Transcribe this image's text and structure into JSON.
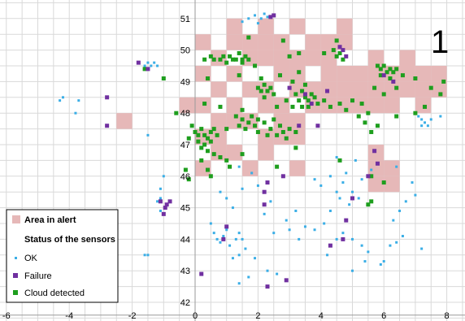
{
  "chart_data": {
    "type": "scatter",
    "panel_label": "1",
    "xlim": [
      -6,
      8.5
    ],
    "ylim": [
      41.8,
      51.4
    ],
    "x_ticks": [
      -6,
      -4,
      -2,
      0,
      2,
      4,
      6,
      8
    ],
    "y_ticks": [
      42,
      43,
      44,
      45,
      46,
      47,
      48,
      49,
      50,
      51
    ],
    "grid": true,
    "legend_position": "bottom-left",
    "colors": {
      "alert": "#e6b8b8",
      "ok": "#3aaee6",
      "failure": "#7030a0",
      "cloud": "#1e9e1e",
      "grid": "#d9d9d9"
    },
    "legend": {
      "alert_label": "Area in alert",
      "status_title": "Status of the sensors",
      "ok_label": "OK",
      "failure_label": "Failure",
      "cloud_label": "Cloud detected"
    },
    "alert_cells": [
      [
        1,
        50.5
      ],
      [
        2,
        50.5
      ],
      [
        3,
        50.5
      ],
      [
        4.5,
        50.5
      ],
      [
        0,
        50
      ],
      [
        1,
        50
      ],
      [
        1.5,
        50
      ],
      [
        2,
        50
      ],
      [
        2.5,
        50
      ],
      [
        3.5,
        50
      ],
      [
        4,
        50
      ],
      [
        4.5,
        50
      ],
      [
        0.5,
        49.5
      ],
      [
        1.5,
        49.5
      ],
      [
        2,
        49.5
      ],
      [
        2.5,
        49.5
      ],
      [
        3,
        49.5
      ],
      [
        3.5,
        49.5
      ],
      [
        4,
        49.5
      ],
      [
        5.5,
        49.5
      ],
      [
        6.5,
        49.5
      ],
      [
        0,
        49
      ],
      [
        1,
        49
      ],
      [
        2.5,
        49
      ],
      [
        3,
        49
      ],
      [
        4,
        49
      ],
      [
        4.5,
        49
      ],
      [
        5,
        49
      ],
      [
        5.5,
        49
      ],
      [
        6,
        49
      ],
      [
        6.5,
        49
      ],
      [
        7,
        49
      ],
      [
        7.5,
        49
      ],
      [
        0.5,
        48.5
      ],
      [
        1.5,
        48.5
      ],
      [
        2,
        48.5
      ],
      [
        3,
        48.5
      ],
      [
        3.5,
        48.5
      ],
      [
        4,
        48.5
      ],
      [
        4.5,
        48.5
      ],
      [
        5,
        48.5
      ],
      [
        5.5,
        48.5
      ],
      [
        6,
        48.5
      ],
      [
        6.5,
        48.5
      ],
      [
        7,
        48.5
      ],
      [
        7.5,
        48.5
      ],
      [
        -0.5,
        48
      ],
      [
        0,
        48
      ],
      [
        1,
        48
      ],
      [
        2,
        48
      ],
      [
        2.5,
        48
      ],
      [
        3.5,
        48
      ],
      [
        4,
        48
      ],
      [
        4.5,
        48
      ],
      [
        5,
        48
      ],
      [
        5.5,
        48
      ],
      [
        6,
        48
      ],
      [
        7,
        48
      ],
      [
        -2.5,
        47.5
      ],
      [
        0.5,
        47.5
      ],
      [
        1,
        47.5
      ],
      [
        1.5,
        47.5
      ],
      [
        2.5,
        47.5
      ],
      [
        3,
        47.5
      ],
      [
        0,
        47
      ],
      [
        0.5,
        47
      ],
      [
        2,
        47
      ],
      [
        2.5,
        47
      ],
      [
        3,
        47
      ],
      [
        0.5,
        46.5
      ],
      [
        1,
        46.5
      ],
      [
        2,
        46.5
      ],
      [
        5.5,
        46.5
      ],
      [
        0,
        46
      ],
      [
        1.5,
        46
      ],
      [
        3,
        46
      ],
      [
        5.5,
        46
      ],
      [
        6,
        46
      ],
      [
        5.5,
        45.5
      ],
      [
        6,
        45.5
      ]
    ],
    "ok": [
      [
        1.7,
        51.0
      ],
      [
        1.9,
        51.1
      ],
      [
        2.1,
        51.0
      ],
      [
        2.2,
        51.15
      ],
      [
        2.3,
        51.05
      ],
      [
        1.5,
        50.9
      ],
      [
        2.0,
        50.85
      ],
      [
        -1.6,
        49.5
      ],
      [
        -1.5,
        49.6
      ],
      [
        -1.4,
        49.5
      ],
      [
        -1.3,
        49.6
      ],
      [
        -1.2,
        49.5
      ],
      [
        -4.3,
        48.4
      ],
      [
        -4.2,
        48.5
      ],
      [
        -3.8,
        48.0
      ],
      [
        -3.7,
        48.4
      ],
      [
        7.1,
        47.9
      ],
      [
        7.2,
        47.8
      ],
      [
        7.3,
        47.7
      ],
      [
        7.4,
        47.6
      ],
      [
        7.2,
        47.6
      ],
      [
        7.8,
        47.9
      ],
      [
        7.5,
        47.8
      ],
      [
        -1.5,
        47.3
      ],
      [
        -1.0,
        46.0
      ],
      [
        -1.1,
        45.6
      ],
      [
        -1.1,
        45.3
      ],
      [
        -1.2,
        45.2
      ],
      [
        -1.1,
        44.9
      ],
      [
        -1.5,
        43.5
      ],
      [
        -1.6,
        43.5
      ],
      [
        0.5,
        44.5
      ],
      [
        0.6,
        44.2
      ],
      [
        0.7,
        44.0
      ],
      [
        0.8,
        43.9
      ],
      [
        0.9,
        44.1
      ],
      [
        1.0,
        44.3
      ],
      [
        1.1,
        43.8
      ],
      [
        1.3,
        44.0
      ],
      [
        1.4,
        44.2
      ],
      [
        1.5,
        44.0
      ],
      [
        1.6,
        43.7
      ],
      [
        1.4,
        43.5
      ],
      [
        1.2,
        43.4
      ],
      [
        1.4,
        42.6
      ],
      [
        1.7,
        42.8
      ],
      [
        1.9,
        43.4
      ],
      [
        2.3,
        43.0
      ],
      [
        2.6,
        42.9
      ],
      [
        1.0,
        45.3
      ],
      [
        1.2,
        45.0
      ],
      [
        0.8,
        45.5
      ],
      [
        1.5,
        45.6
      ],
      [
        1.8,
        46.1
      ],
      [
        1.4,
        46.3
      ],
      [
        2.0,
        45.7
      ],
      [
        2.2,
        44.8
      ],
      [
        2.5,
        44.2
      ],
      [
        3.0,
        44.3
      ],
      [
        3.5,
        44.4
      ],
      [
        3.3,
        44.0
      ],
      [
        2.9,
        44.6
      ],
      [
        2.4,
        45.2
      ],
      [
        3.2,
        44.9
      ],
      [
        3.8,
        44.3
      ],
      [
        4.1,
        44.5
      ],
      [
        4.3,
        44.9
      ],
      [
        4.0,
        45.7
      ],
      [
        4.3,
        46.0
      ],
      [
        4.5,
        45.5
      ],
      [
        4.7,
        45.8
      ],
      [
        4.6,
        45.3
      ],
      [
        4.9,
        45.1
      ],
      [
        5.0,
        45.5
      ],
      [
        5.3,
        45.9
      ],
      [
        5.2,
        45.3
      ],
      [
        4.8,
        44.6
      ],
      [
        4.7,
        44.2
      ],
      [
        4.5,
        44.0
      ],
      [
        5.0,
        44.0
      ],
      [
        5.3,
        43.8
      ],
      [
        5.5,
        43.6
      ],
      [
        5.4,
        43.3
      ],
      [
        5.9,
        43.2
      ],
      [
        6.0,
        43.3
      ],
      [
        6.2,
        43.8
      ],
      [
        6.4,
        43.9
      ],
      [
        6.6,
        44.1
      ],
      [
        6.3,
        44.6
      ],
      [
        6.5,
        44.9
      ],
      [
        6.7,
        45.2
      ],
      [
        4.5,
        46.6
      ],
      [
        4.8,
        46.1
      ],
      [
        5.1,
        46.5
      ],
      [
        5.6,
        46.2
      ],
      [
        6.4,
        46.3
      ],
      [
        6.9,
        45.8
      ],
      [
        7.2,
        43.7
      ],
      [
        7.0,
        45.4
      ],
      [
        3.8,
        45.9
      ],
      [
        4.2,
        43.5
      ],
      [
        5.0,
        43.0
      ]
    ],
    "failure": [
      [
        2.4,
        51.05
      ],
      [
        2.5,
        51.1
      ],
      [
        -1.8,
        49.6
      ],
      [
        -1.5,
        49.4
      ],
      [
        -2.8,
        48.5
      ],
      [
        -2.8,
        47.6
      ],
      [
        -1.1,
        45.2
      ],
      [
        -0.9,
        45.1
      ],
      [
        -0.8,
        45.2
      ],
      [
        -0.95,
        45.0
      ],
      [
        -1.0,
        44.8
      ],
      [
        1.0,
        44.4
      ],
      [
        0.9,
        44.0
      ],
      [
        0.2,
        42.9
      ],
      [
        2.3,
        42.5
      ],
      [
        2.9,
        42.7
      ],
      [
        2.2,
        45.1
      ],
      [
        2.2,
        45.5
      ],
      [
        2.3,
        45.8
      ],
      [
        4.3,
        43.8
      ],
      [
        4.7,
        44.0
      ],
      [
        4.8,
        44.6
      ],
      [
        5.0,
        45.3
      ],
      [
        5.5,
        46.0
      ],
      [
        5.7,
        46.8
      ],
      [
        5.8,
        46.4
      ],
      [
        6.0,
        49.2
      ],
      [
        6.3,
        49.0
      ],
      [
        4.7,
        50.0
      ],
      [
        4.8,
        49.8
      ],
      [
        4.6,
        50.1
      ],
      [
        3.0,
        48.8
      ],
      [
        3.5,
        48.6
      ],
      [
        3.7,
        48.3
      ],
      [
        3.3,
        47.6
      ],
      [
        3.9,
        47.6
      ],
      [
        4.2,
        48.7
      ],
      [
        2.8,
        46.0
      ]
    ],
    "cloud": [
      [
        1.7,
        50.4
      ],
      [
        2.8,
        50.3
      ],
      [
        4.5,
        50.3
      ],
      [
        0.3,
        49.7
      ],
      [
        0.5,
        49.8
      ],
      [
        0.6,
        49.7
      ],
      [
        0.8,
        49.7
      ],
      [
        0.9,
        49.8
      ],
      [
        1.1,
        49.8
      ],
      [
        1.2,
        49.7
      ],
      [
        1.3,
        49.7
      ],
      [
        1.4,
        49.9
      ],
      [
        1.5,
        49.7
      ],
      [
        1.6,
        49.8
      ],
      [
        1.7,
        49.7
      ],
      [
        1.5,
        49.6
      ],
      [
        1.0,
        49.6
      ],
      [
        3.0,
        49.8
      ],
      [
        3.3,
        49.9
      ],
      [
        4.1,
        49.9
      ],
      [
        4.4,
        50.0
      ],
      [
        4.5,
        49.8
      ],
      [
        4.6,
        49.9
      ],
      [
        4.7,
        49.7
      ],
      [
        -1.6,
        49.4
      ],
      [
        -1.0,
        49.1
      ],
      [
        0.4,
        49.1
      ],
      [
        1.4,
        49.2
      ],
      [
        1.9,
        49.5
      ],
      [
        2.1,
        49.1
      ],
      [
        2.7,
        49.2
      ],
      [
        3.1,
        49.0
      ],
      [
        3.3,
        49.3
      ],
      [
        2.0,
        48.8
      ],
      [
        2.1,
        48.7
      ],
      [
        2.2,
        48.9
      ],
      [
        2.3,
        48.7
      ],
      [
        2.4,
        48.8
      ],
      [
        2.2,
        48.5
      ],
      [
        2.5,
        48.6
      ],
      [
        3.2,
        48.6
      ],
      [
        3.3,
        48.4
      ],
      [
        3.4,
        48.7
      ],
      [
        3.5,
        48.5
      ],
      [
        3.6,
        48.4
      ],
      [
        3.7,
        48.6
      ],
      [
        3.8,
        48.5
      ],
      [
        3.9,
        48.3
      ],
      [
        3.4,
        48.2
      ],
      [
        3.6,
        48.2
      ],
      [
        3.5,
        48.9
      ],
      [
        3.1,
        48.2
      ],
      [
        4.1,
        48.4
      ],
      [
        4.3,
        48.2
      ],
      [
        4.6,
        48.3
      ],
      [
        4.8,
        48.1
      ],
      [
        5.0,
        48.4
      ],
      [
        5.3,
        48.3
      ],
      [
        5.5,
        48.0
      ],
      [
        5.7,
        48.8
      ],
      [
        6.0,
        48.6
      ],
      [
        6.4,
        48.8
      ],
      [
        -0.6,
        48.0
      ],
      [
        0.3,
        48.3
      ],
      [
        0.8,
        48.2
      ],
      [
        1.5,
        48.1
      ],
      [
        2.6,
        48.2
      ],
      [
        2.9,
        48.4
      ],
      [
        -0.1,
        47.6
      ],
      [
        0.0,
        47.4
      ],
      [
        0.1,
        47.3
      ],
      [
        0.2,
        47.5
      ],
      [
        0.3,
        47.3
      ],
      [
        0.4,
        47.2
      ],
      [
        0.5,
        47.4
      ],
      [
        0.6,
        47.5
      ],
      [
        0.1,
        47.1
      ],
      [
        0.3,
        47.0
      ],
      [
        0.5,
        47.1
      ],
      [
        0.7,
        47.3
      ],
      [
        0.2,
        46.9
      ],
      [
        0.4,
        46.8
      ],
      [
        -0.2,
        47.2
      ],
      [
        0.6,
        46.7
      ],
      [
        1.0,
        47.5
      ],
      [
        1.3,
        47.9
      ],
      [
        1.4,
        47.6
      ],
      [
        1.5,
        47.8
      ],
      [
        1.6,
        47.5
      ],
      [
        1.7,
        47.7
      ],
      [
        1.8,
        47.9
      ],
      [
        1.9,
        47.6
      ],
      [
        2.0,
        47.8
      ],
      [
        2.2,
        47.7
      ],
      [
        2.4,
        47.5
      ],
      [
        2.5,
        47.8
      ],
      [
        2.7,
        47.6
      ],
      [
        2.8,
        47.4
      ],
      [
        2.9,
        47.2
      ],
      [
        3.0,
        47.5
      ],
      [
        3.2,
        47.4
      ],
      [
        2.6,
        47.3
      ],
      [
        2.3,
        47.3
      ],
      [
        2.0,
        47.4
      ],
      [
        5.8,
        49.5
      ],
      [
        5.9,
        49.4
      ],
      [
        6.0,
        49.5
      ],
      [
        6.1,
        49.3
      ],
      [
        6.2,
        49.4
      ],
      [
        6.3,
        49.3
      ],
      [
        6.4,
        49.4
      ],
      [
        5.9,
        49.2
      ],
      [
        6.2,
        49.1
      ],
      [
        6.6,
        49.2
      ],
      [
        7.0,
        49.1
      ],
      [
        7.5,
        48.8
      ],
      [
        7.8,
        48.6
      ],
      [
        7.9,
        49.0
      ],
      [
        7.3,
        48.2
      ],
      [
        7.0,
        48.0
      ],
      [
        6.4,
        47.9
      ],
      [
        5.2,
        47.9
      ],
      [
        5.4,
        47.7
      ],
      [
        5.8,
        47.6
      ],
      [
        5.6,
        47.4
      ],
      [
        0.8,
        46.6
      ],
      [
        1.0,
        46.5
      ],
      [
        0.2,
        46.5
      ],
      [
        -0.3,
        46.2
      ],
      [
        -0.2,
        45.9
      ],
      [
        0.4,
        46.2
      ],
      [
        1.1,
        46.3
      ],
      [
        1.5,
        46.7
      ],
      [
        2.6,
        46.3
      ],
      [
        3.2,
        46.9
      ],
      [
        4.6,
        46.5
      ],
      [
        5.6,
        46.0
      ],
      [
        6.0,
        45.8
      ],
      [
        5.5,
        45.1
      ],
      [
        5.6,
        45.2
      ],
      [
        0.5,
        46.0
      ]
    ]
  }
}
